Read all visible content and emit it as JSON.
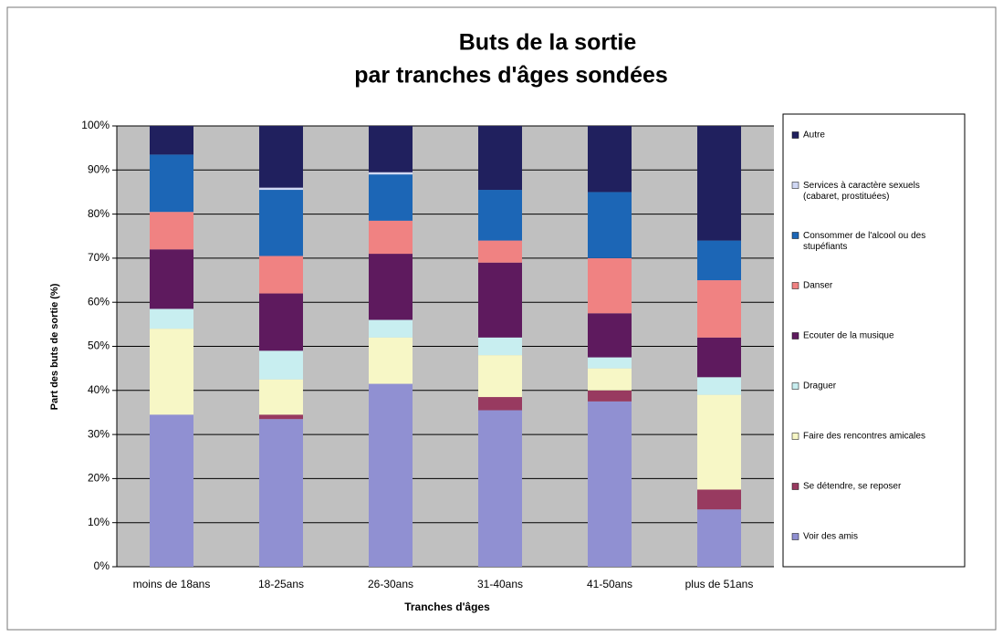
{
  "chart_data": {
    "type": "stacked_bar",
    "title": [
      "Buts de la sortie",
      "par tranches d'âges sondées"
    ],
    "x_label": "Tranches d'âges",
    "y_label": "Part des buts de sortie (%)",
    "categories": [
      "moins de 18ans",
      "18-25ans",
      "26-30ans",
      "31-40ans",
      "41-50ans",
      "plus de 51ans"
    ],
    "series": [
      {
        "name": "Voir des amis",
        "color": "#9090d2",
        "values": [
          34.5,
          33.5,
          41.5,
          35.5,
          37.5,
          13
        ]
      },
      {
        "name": "Se détendre, se reposer",
        "color": "#983a60",
        "values": [
          0,
          1,
          0,
          3,
          2.5,
          4.5
        ]
      },
      {
        "name": "Faire des rencontres amicales",
        "color": "#f7f7c6",
        "values": [
          19.5,
          8,
          10.5,
          9.5,
          5,
          21.5
        ]
      },
      {
        "name": "Draguer",
        "color": "#c8eef0",
        "values": [
          4.5,
          6.5,
          4,
          4,
          2.5,
          4
        ]
      },
      {
        "name": "Ecouter de la musique",
        "color": "#5e1a5e",
        "values": [
          13.5,
          13,
          15,
          17,
          10,
          9
        ]
      },
      {
        "name": "Danser",
        "color": "#f08282",
        "values": [
          8.5,
          8.5,
          7.5,
          5,
          12.5,
          13
        ]
      },
      {
        "name": "Consommer de l'alcool ou des stupéfiants",
        "color": "#1c66b6",
        "values": [
          13,
          15,
          10.5,
          11.5,
          15,
          9
        ]
      },
      {
        "name": "Services à caractère sexuels (cabaret, prostituées)",
        "color": "#d0d8f4",
        "values": [
          0,
          0.5,
          0.5,
          0,
          0,
          0
        ]
      },
      {
        "name": "Autre",
        "color": "#20205e",
        "values": [
          6.5,
          14,
          10.5,
          14.5,
          15,
          26
        ]
      }
    ],
    "ylim": [
      0,
      100
    ],
    "yticks": [
      {
        "value": 0,
        "label": "0%"
      },
      {
        "value": 10,
        "label": "10%"
      },
      {
        "value": 20,
        "label": "20%"
      },
      {
        "value": 30,
        "label": "30%"
      },
      {
        "value": 40,
        "label": "40%"
      },
      {
        "value": 50,
        "label": "50%"
      },
      {
        "value": 60,
        "label": "60%"
      },
      {
        "value": 70,
        "label": "70%"
      },
      {
        "value": 80,
        "label": "80%"
      },
      {
        "value": 90,
        "label": "90%"
      },
      {
        "value": 100,
        "label": "100%"
      }
    ],
    "grid": true,
    "legend": "right"
  }
}
